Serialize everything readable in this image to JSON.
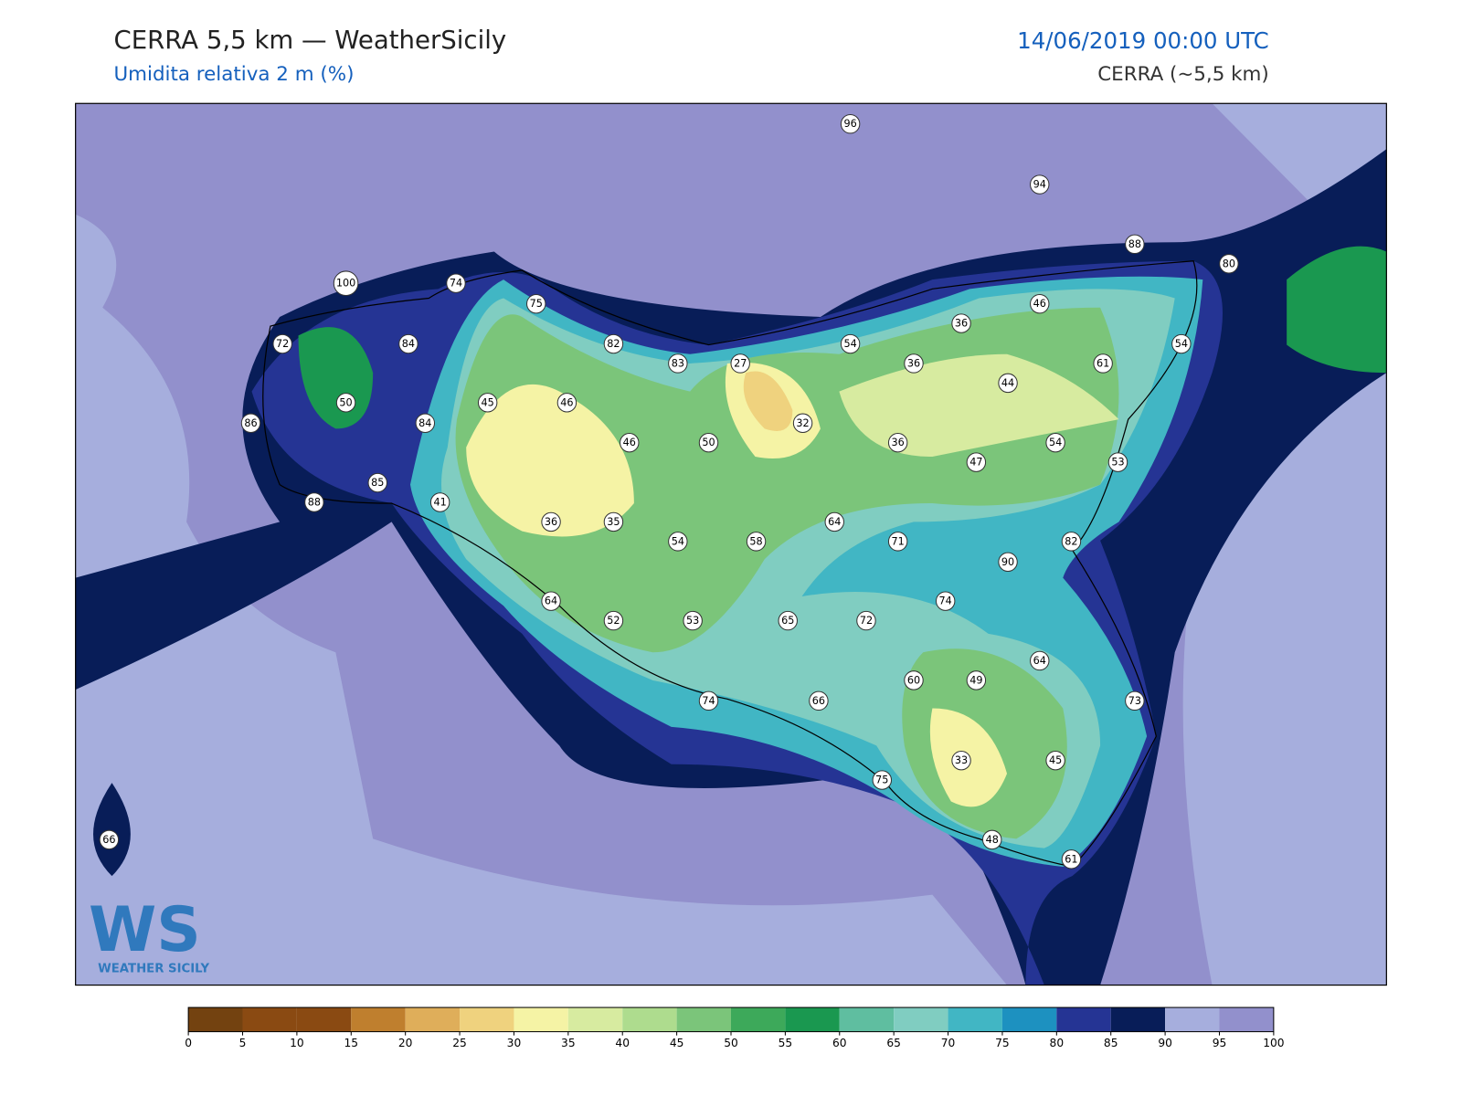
{
  "header": {
    "title": "CERRA 5,5 km — WeatherSicily",
    "subtitle": "Umidita relativa 2 m (%)",
    "date": "14/06/2019 00:00 UTC",
    "model": "CERRA (~5,5 km)"
  },
  "logo": {
    "mark": "WS",
    "text": "WEATHER SICILY"
  },
  "stations": [
    96,
    94,
    88,
    80,
    100,
    74,
    75,
    46,
    36,
    72,
    84,
    82,
    54,
    83,
    27,
    36,
    61,
    54,
    44,
    50,
    45,
    46,
    86,
    84,
    32,
    46,
    50,
    36,
    54,
    47,
    53,
    85,
    88,
    41,
    36,
    35,
    64,
    54,
    58,
    71,
    82,
    90,
    64,
    74,
    52,
    53,
    65,
    72,
    64,
    60,
    49,
    74,
    66,
    73,
    33,
    45,
    75,
    66,
    48,
    61
  ],
  "colorbar": {
    "ticks": [
      0,
      5,
      10,
      15,
      20,
      25,
      30,
      35,
      40,
      45,
      50,
      55,
      60,
      65,
      70,
      75,
      80,
      85,
      90,
      95,
      100
    ],
    "colors": [
      "#734210",
      "#8a4a12",
      "#8a4a12",
      "#bf7f2e",
      "#dfae5a",
      "#efd27e",
      "#f5f3a5",
      "#d7eba0",
      "#aedc8e",
      "#7bc57a",
      "#3da95a",
      "#1a9850",
      "#5fbea0",
      "#80cdc1",
      "#41b6c4",
      "#1d91c0",
      "#253494",
      "#081d58",
      "#a6aedd",
      "#9290cc"
    ]
  }
}
